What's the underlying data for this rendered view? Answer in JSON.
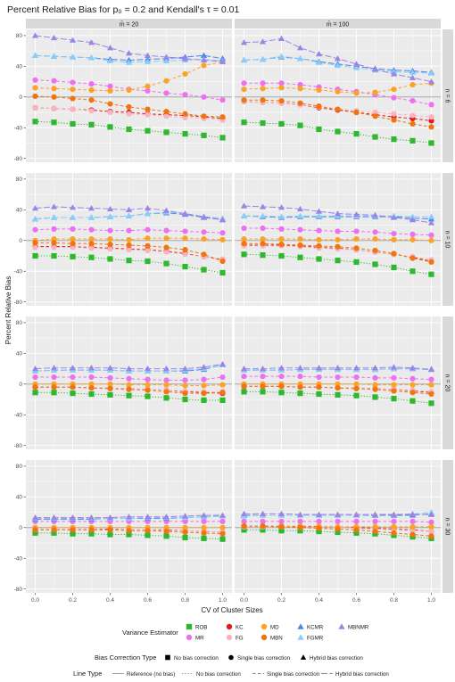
{
  "chart_data": {
    "type": "line",
    "title": "Percent Relative Bias for p₀ = 0.2 and Kendall's τ = 0.01",
    "xlabel": "CV of Cluster Sizes",
    "ylabel": "Percent Relative Bias",
    "x": [
      0.0,
      0.1,
      0.2,
      0.3,
      0.4,
      0.5,
      0.6,
      0.7,
      0.8,
      0.9,
      1.0
    ],
    "xticks": [
      "0.0",
      "0.2",
      "0.4",
      "0.6",
      "0.8",
      "1.0"
    ],
    "yticks": [
      "80",
      "40",
      "0",
      "-40",
      "-80"
    ],
    "ylim": [
      -85,
      88
    ],
    "columns": [
      "m̄ = 20",
      "m̄ = 100"
    ],
    "rows": [
      "n = 6",
      "n = 10",
      "n = 20",
      "n = 30"
    ],
    "estimators": [
      {
        "name": "ROB",
        "color": "#2db82d",
        "shape": "square",
        "line": "dotted"
      },
      {
        "name": "MR",
        "color": "#ee6ff0",
        "shape": "circle",
        "line": "dashed"
      },
      {
        "name": "KC",
        "color": "#e31a1c",
        "shape": "circle",
        "line": "dashed"
      },
      {
        "name": "FG",
        "color": "#f9b4c0",
        "shape": "circle",
        "line": "dashed"
      },
      {
        "name": "MD",
        "color": "#fba227",
        "shape": "circle",
        "line": "dashed"
      },
      {
        "name": "MBN",
        "color": "#f07410",
        "shape": "circle",
        "line": "dashed"
      },
      {
        "name": "KCMR",
        "color": "#4a86e8",
        "shape": "triangle",
        "line": "longdash"
      },
      {
        "name": "FGMR",
        "color": "#87cefa",
        "shape": "triangle",
        "line": "longdash"
      },
      {
        "name": "MBNMR",
        "color": "#9c84e6",
        "shape": "triangle",
        "line": "longdash"
      }
    ],
    "panels": [
      {
        "row": 0,
        "col": 0,
        "series": {
          "ROB": [
            -32,
            -33,
            -35,
            -36,
            -39,
            -42,
            -44,
            -46,
            -48,
            -50,
            -53
          ],
          "MR": [
            22,
            21,
            19,
            17,
            14,
            10,
            8,
            5,
            3,
            0,
            -4
          ],
          "KC": [
            -14,
            -15,
            -16,
            -17,
            -19,
            -20,
            -22,
            -23,
            -24,
            -26,
            -28
          ],
          "FG": [
            -14,
            -15,
            -16,
            -18,
            -20,
            -22,
            -23,
            -25,
            -27,
            -28,
            -30
          ],
          "MD": [
            12,
            11,
            10,
            9,
            8,
            9,
            14,
            21,
            30,
            41,
            46
          ],
          "MBN": [
            1,
            0,
            -2,
            -4,
            -9,
            -13,
            -16,
            -19,
            -22,
            -25,
            -26
          ],
          "KCMR": [
            54,
            53,
            52,
            51,
            49,
            48,
            49,
            50,
            52,
            54,
            50
          ],
          "FGMR": [
            54,
            53,
            52,
            51,
            47,
            45,
            46,
            47,
            48,
            49,
            47
          ],
          "MBNMR": [
            80,
            77,
            74,
            71,
            64,
            57,
            54,
            52,
            50,
            48,
            46
          ]
        }
      },
      {
        "row": 0,
        "col": 1,
        "series": {
          "ROB": [
            -33,
            -34,
            -35,
            -37,
            -42,
            -45,
            -48,
            -52,
            -55,
            -57,
            -60
          ],
          "MR": [
            18,
            18,
            18,
            16,
            13,
            10,
            7,
            3,
            -1,
            -5,
            -10
          ],
          "KC": [
            -6,
            -7,
            -8,
            -10,
            -14,
            -17,
            -20,
            -23,
            -26,
            -28,
            -31
          ],
          "FG": [
            -6,
            -7,
            -8,
            -10,
            -13,
            -16,
            -18,
            -20,
            -22,
            -24,
            -26
          ],
          "MD": [
            10,
            11,
            12,
            11,
            9,
            7,
            5,
            6,
            10,
            16,
            18
          ],
          "MBN": [
            -4,
            -4,
            -5,
            -8,
            -12,
            -16,
            -20,
            -25,
            -30,
            -35,
            -39
          ],
          "KCMR": [
            48,
            49,
            52,
            50,
            46,
            43,
            40,
            37,
            35,
            34,
            32
          ],
          "FGMR": [
            48,
            49,
            53,
            50,
            45,
            41,
            38,
            35,
            33,
            32,
            31
          ],
          "MBNMR": [
            71,
            72,
            76,
            64,
            56,
            50,
            43,
            36,
            30,
            25,
            20
          ]
        }
      },
      {
        "row": 1,
        "col": 0,
        "series": {
          "ROB": [
            -20,
            -20,
            -21,
            -22,
            -24,
            -26,
            -27,
            -30,
            -34,
            -38,
            -42
          ],
          "MR": [
            14,
            15,
            15,
            14,
            13,
            13,
            14,
            13,
            12,
            11,
            10
          ],
          "KC": [
            -8,
            -8,
            -8,
            -9,
            -10,
            -11,
            -12,
            -14,
            -17,
            -21,
            -25
          ],
          "FG": [
            -9,
            -9,
            -9,
            -10,
            -11,
            -12,
            -13,
            -15,
            -18,
            -21,
            -24
          ],
          "MD": [
            0,
            2,
            2,
            2,
            2,
            1,
            3,
            3,
            3,
            2,
            1
          ],
          "MBN": [
            -3,
            -3,
            -4,
            -4,
            -5,
            -6,
            -7,
            -9,
            -12,
            -18,
            -27
          ],
          "KCMR": [
            28,
            30,
            30,
            30,
            31,
            32,
            35,
            36,
            34,
            30,
            27
          ],
          "FGMR": [
            28,
            30,
            30,
            30,
            31,
            32,
            35,
            37,
            35,
            31,
            29
          ],
          "MBNMR": [
            42,
            44,
            43,
            42,
            41,
            40,
            42,
            39,
            35,
            31,
            27
          ]
        }
      },
      {
        "row": 1,
        "col": 1,
        "series": {
          "ROB": [
            -18,
            -19,
            -20,
            -22,
            -24,
            -26,
            -28,
            -31,
            -35,
            -40,
            -44
          ],
          "MR": [
            16,
            16,
            15,
            14,
            13,
            12,
            12,
            11,
            9,
            8,
            7
          ],
          "KC": [
            -6,
            -6,
            -6,
            -7,
            -9,
            -10,
            -12,
            -15,
            -18,
            -22,
            -27
          ],
          "FG": [
            -7,
            -7,
            -7,
            -8,
            -10,
            -11,
            -12,
            -15,
            -18,
            -21,
            -25
          ],
          "MD": [
            2,
            2,
            2,
            2,
            1,
            1,
            2,
            2,
            1,
            1,
            0
          ],
          "MBN": [
            -4,
            -4,
            -5,
            -6,
            -7,
            -8,
            -10,
            -13,
            -17,
            -23,
            -28
          ],
          "KCMR": [
            32,
            31,
            30,
            31,
            31,
            31,
            31,
            31,
            31,
            29,
            28
          ],
          "FGMR": [
            32,
            32,
            31,
            32,
            32,
            32,
            32,
            32,
            32,
            31,
            31
          ],
          "MBNMR": [
            45,
            44,
            43,
            41,
            38,
            35,
            34,
            33,
            30,
            27,
            23
          ]
        }
      },
      {
        "row": 2,
        "col": 0,
        "series": {
          "ROB": [
            -11,
            -11,
            -12,
            -13,
            -14,
            -15,
            -16,
            -18,
            -20,
            -21,
            -21
          ],
          "MR": [
            9,
            9,
            9,
            9,
            8,
            7,
            6,
            5,
            5,
            6,
            9
          ],
          "KC": [
            -4,
            -4,
            -4,
            -5,
            -5,
            -6,
            -7,
            -8,
            -10,
            -11,
            -12
          ],
          "FG": [
            -4,
            -4,
            -4,
            -5,
            -5,
            -6,
            -7,
            -8,
            -9,
            -10,
            -10
          ],
          "MD": [
            0,
            0,
            0,
            0,
            0,
            -1,
            -1,
            -1,
            -2,
            -2,
            -1
          ],
          "MBN": [
            -4,
            -4,
            -4,
            -5,
            -6,
            -7,
            -8,
            -10,
            -12,
            -12,
            -11
          ],
          "KCMR": [
            17,
            18,
            18,
            18,
            18,
            17,
            17,
            17,
            17,
            19,
            25
          ],
          "FGMR": [
            17,
            18,
            18,
            18,
            18,
            17,
            17,
            17,
            18,
            20,
            25
          ],
          "MBNMR": [
            20,
            21,
            21,
            21,
            21,
            20,
            20,
            20,
            20,
            22,
            26
          ]
        }
      },
      {
        "row": 2,
        "col": 1,
        "series": {
          "ROB": [
            -10,
            -10,
            -11,
            -12,
            -13,
            -14,
            -15,
            -17,
            -19,
            -22,
            -25
          ],
          "MR": [
            10,
            10,
            10,
            10,
            9,
            9,
            9,
            8,
            8,
            7,
            6
          ],
          "KC": [
            -3,
            -3,
            -3,
            -4,
            -4,
            -5,
            -5,
            -6,
            -7,
            -9,
            -11
          ],
          "FG": [
            -3,
            -3,
            -3,
            -4,
            -4,
            -5,
            -5,
            -6,
            -7,
            -8,
            -10
          ],
          "MD": [
            0,
            0,
            0,
            0,
            0,
            0,
            0,
            -1,
            -1,
            -1,
            -1
          ],
          "MBN": [
            -3,
            -3,
            -3,
            -4,
            -4,
            -5,
            -6,
            -7,
            -9,
            -11,
            -13
          ],
          "KCMR": [
            18,
            18,
            18,
            19,
            19,
            19,
            19,
            19,
            20,
            20,
            19
          ],
          "FGMR": [
            18,
            18,
            18,
            19,
            19,
            19,
            19,
            19,
            20,
            20,
            20
          ],
          "MBNMR": [
            20,
            20,
            21,
            21,
            21,
            21,
            21,
            21,
            22,
            21,
            19
          ]
        }
      },
      {
        "row": 3,
        "col": 0,
        "series": {
          "ROB": [
            -7,
            -7,
            -8,
            -8,
            -9,
            -9,
            -10,
            -11,
            -13,
            -14,
            -15
          ],
          "MR": [
            8,
            8,
            8,
            8,
            8,
            8,
            8,
            8,
            8,
            8,
            8
          ],
          "KC": [
            -2,
            -2,
            -2,
            -2,
            -2,
            -3,
            -3,
            -3,
            -4,
            -5,
            -6
          ],
          "FG": [
            -2,
            -2,
            -2,
            -2,
            -3,
            -3,
            -3,
            -4,
            -4,
            -5,
            -6
          ],
          "MD": [
            0,
            0,
            0,
            0,
            0,
            0,
            0,
            0,
            0,
            0,
            0
          ],
          "MBN": [
            -3,
            -3,
            -3,
            -3,
            -3,
            -4,
            -4,
            -5,
            -6,
            -7,
            -8
          ],
          "KCMR": [
            11,
            11,
            11,
            11,
            12,
            12,
            12,
            12,
            13,
            14,
            15
          ],
          "FGMR": [
            12,
            12,
            12,
            12,
            12,
            12,
            13,
            13,
            13,
            14,
            15
          ],
          "MBNMR": [
            13,
            13,
            13,
            13,
            13,
            14,
            14,
            14,
            15,
            16,
            16
          ]
        }
      },
      {
        "row": 3,
        "col": 1,
        "series": {
          "ROB": [
            -3,
            -3,
            -4,
            -4,
            -5,
            -6,
            -7,
            -8,
            -10,
            -12,
            -14
          ],
          "MR": [
            8,
            8,
            8,
            8,
            8,
            8,
            8,
            8,
            8,
            8,
            7
          ],
          "KC": [
            2,
            2,
            2,
            1,
            1,
            0,
            0,
            -1,
            -2,
            -3,
            -5
          ],
          "FG": [
            1,
            1,
            1,
            0,
            0,
            0,
            -1,
            -2,
            -3,
            -4,
            -5
          ],
          "MD": [
            2,
            2,
            2,
            2,
            2,
            1,
            1,
            1,
            1,
            1,
            1
          ],
          "MBN": [
            2,
            2,
            1,
            0,
            -1,
            -2,
            -3,
            -5,
            -7,
            -9,
            -11
          ],
          "KCMR": [
            16,
            16,
            16,
            16,
            16,
            16,
            16,
            16,
            16,
            16,
            18
          ],
          "FGMR": [
            15,
            16,
            16,
            16,
            16,
            16,
            16,
            17,
            17,
            18,
            20
          ],
          "MBNMR": [
            18,
            18,
            18,
            17,
            17,
            17,
            17,
            17,
            17,
            17,
            17
          ]
        }
      }
    ],
    "legend": {
      "variance_title": "Variance Estimator",
      "bias_title": "Bias Correction Type",
      "bias_items": [
        {
          "label": "No bias correction",
          "shape": "square"
        },
        {
          "label": "Single bias correction",
          "shape": "circle"
        },
        {
          "label": "Hybrid bias correction",
          "shape": "triangle"
        }
      ],
      "line_title": "Line Type",
      "line_items": [
        {
          "label": "Reference (no bias)",
          "line": "solid"
        },
        {
          "label": "No bias correction",
          "line": "dotted"
        },
        {
          "label": "Single bias correction",
          "line": "dashed"
        },
        {
          "label": "Hybrid bias correction",
          "line": "longdash"
        }
      ]
    }
  }
}
